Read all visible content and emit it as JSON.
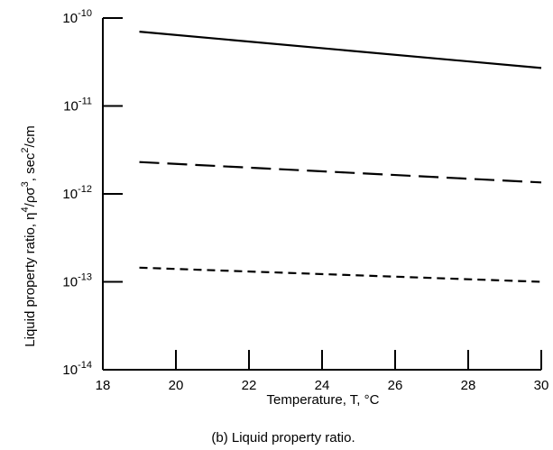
{
  "chart_data": {
    "type": "line",
    "xlabel": "Temperature, T, °C",
    "ylabel": {
      "prefix": "Liquid property ratio, η",
      "exp1": "4",
      "mid": "/ρσ",
      "exp2": "3",
      "mid2": ", sec",
      "exp3": "2",
      "suffix": "/cm"
    },
    "caption": "(b) Liquid property ratio.",
    "x_ticks": [
      "18",
      "20",
      "22",
      "24",
      "26",
      "28",
      "30"
    ],
    "y_ticks": [
      {
        "base": "10",
        "exp": "-10",
        "value": 1e-10
      },
      {
        "base": "10",
        "exp": "-11",
        "value": 1e-11
      },
      {
        "base": "10",
        "exp": "-12",
        "value": 1e-12
      },
      {
        "base": "10",
        "exp": "-13",
        "value": 1e-13
      },
      {
        "base": "10",
        "exp": "-14",
        "value": 1e-14
      }
    ],
    "xlim": [
      18,
      30
    ],
    "ylim": [
      1e-14,
      1e-10
    ],
    "y_scale": "log",
    "grid": false,
    "series": [
      {
        "style": "solid",
        "x": [
          19,
          30
        ],
        "y": [
          7e-11,
          2.7e-11
        ]
      },
      {
        "style": "long-dash",
        "x": [
          19,
          30
        ],
        "y": [
          2.3e-12,
          1.35e-12
        ]
      },
      {
        "style": "short-dash",
        "x": [
          19,
          30
        ],
        "y": [
          1.45e-13,
          1e-13
        ]
      }
    ]
  }
}
